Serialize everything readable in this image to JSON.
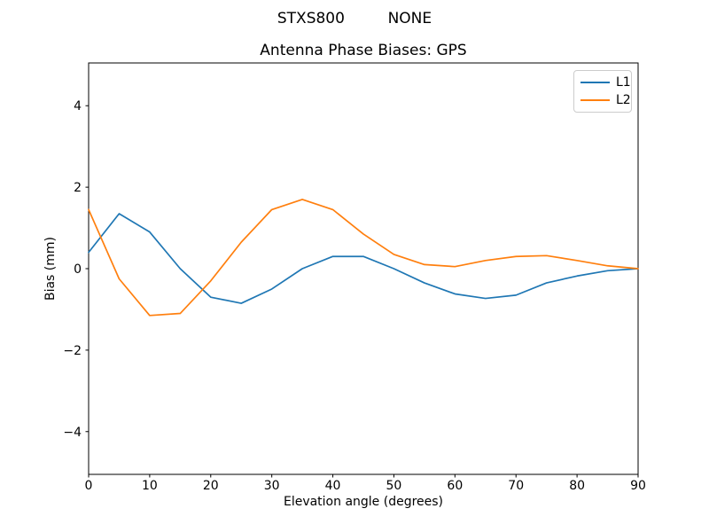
{
  "chart_data": {
    "type": "line",
    "suptitle": "STXS800         NONE",
    "title": "Antenna Phase Biases: GPS",
    "xlabel": "Elevation angle (degrees)",
    "ylabel": "Bias (mm)",
    "x": [
      0,
      5,
      10,
      15,
      20,
      25,
      30,
      35,
      40,
      45,
      50,
      55,
      60,
      65,
      70,
      75,
      80,
      85,
      90
    ],
    "series": [
      {
        "name": "L1",
        "color": "#1f77b4",
        "values": [
          0.4,
          1.35,
          0.9,
          0.0,
          -0.7,
          -0.85,
          -0.5,
          0.0,
          0.3,
          0.3,
          0.0,
          -0.35,
          -0.62,
          -0.73,
          -0.65,
          -0.35,
          -0.18,
          -0.05,
          0.0
        ]
      },
      {
        "name": "L2",
        "color": "#ff7f0e",
        "values": [
          1.45,
          -0.25,
          -1.15,
          -1.1,
          -0.3,
          0.65,
          1.45,
          1.7,
          1.45,
          0.85,
          0.35,
          0.1,
          0.05,
          0.2,
          0.3,
          0.32,
          0.2,
          0.07,
          0.0
        ]
      }
    ],
    "xlim": [
      0,
      90
    ],
    "ylim": [
      -5.05,
      5.05
    ],
    "x_ticks": {
      "values": [
        0,
        10,
        20,
        30,
        40,
        50,
        60,
        70,
        80,
        90
      ],
      "labels": [
        "0",
        "10",
        "20",
        "30",
        "40",
        "50",
        "60",
        "70",
        "80",
        "90"
      ]
    },
    "y_ticks": {
      "values": [
        -4,
        -2,
        0,
        2,
        4
      ],
      "labels": [
        "−4",
        "−2",
        "0",
        "2",
        "4"
      ]
    },
    "grid": false,
    "legend": {
      "position": "upper right",
      "entries": [
        "L1",
        "L2"
      ]
    },
    "axis_color": "#000000"
  }
}
